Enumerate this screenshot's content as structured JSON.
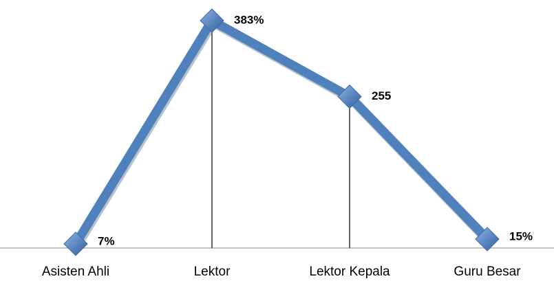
{
  "chart_data": {
    "type": "line",
    "categories": [
      "Asisten Ahli",
      "Lektor",
      "Lektor Kepala",
      "Guru Besar"
    ],
    "values": [
      7,
      383,
      255,
      15
    ],
    "value_labels": [
      "7%",
      "383%",
      "255",
      "15%"
    ],
    "color": "#4f81bd"
  }
}
